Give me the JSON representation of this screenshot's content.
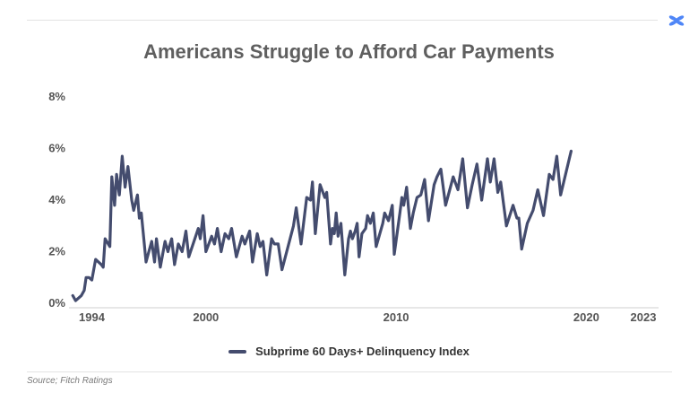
{
  "brand": {
    "logo_icon": "four-petal-x-icon",
    "accent": "#4f86f7"
  },
  "chart_data": {
    "type": "line",
    "title": "Americans Struggle to Afford Car Payments",
    "xlabel": "",
    "ylabel": "",
    "xlim": [
      1992.8,
      2023.8
    ],
    "ylim": [
      0,
      8
    ],
    "x_ticks": [
      1994,
      2000,
      2010,
      2020,
      2023
    ],
    "y_ticks": [
      {
        "value": 0,
        "label": "0%"
      },
      {
        "value": 2,
        "label": "2%"
      },
      {
        "value": 4,
        "label": "4%"
      },
      {
        "value": 6,
        "label": "6%"
      },
      {
        "value": 8,
        "label": "8%"
      }
    ],
    "grid": false,
    "legend_position": "bottom",
    "series": [
      {
        "name": "Subprime 60 Days+ Delinquency Index",
        "color": "#444c6e",
        "points": [
          [
            1993.0,
            0.3
          ],
          [
            1993.15,
            0.1
          ],
          [
            1993.45,
            0.3
          ],
          [
            1993.6,
            0.5
          ],
          [
            1993.7,
            1.0
          ],
          [
            1993.85,
            1.0
          ],
          [
            1994.0,
            0.9
          ],
          [
            1994.2,
            1.7
          ],
          [
            1994.5,
            1.5
          ],
          [
            1994.6,
            1.4
          ],
          [
            1994.7,
            2.5
          ],
          [
            1994.95,
            2.2
          ],
          [
            1995.05,
            4.9
          ],
          [
            1995.2,
            3.8
          ],
          [
            1995.3,
            5.0
          ],
          [
            1995.45,
            4.2
          ],
          [
            1995.6,
            5.7
          ],
          [
            1995.75,
            4.5
          ],
          [
            1995.9,
            5.3
          ],
          [
            1996.1,
            4.0
          ],
          [
            1996.2,
            3.6
          ],
          [
            1996.4,
            4.2
          ],
          [
            1996.5,
            3.3
          ],
          [
            1996.6,
            3.5
          ],
          [
            1996.85,
            1.6
          ],
          [
            1997.0,
            2.0
          ],
          [
            1997.15,
            2.4
          ],
          [
            1997.3,
            1.6
          ],
          [
            1997.4,
            2.5
          ],
          [
            1997.6,
            1.4
          ],
          [
            1997.85,
            2.4
          ],
          [
            1998.0,
            2.0
          ],
          [
            1998.2,
            2.5
          ],
          [
            1998.35,
            1.5
          ],
          [
            1998.55,
            2.3
          ],
          [
            1998.75,
            2.0
          ],
          [
            1998.95,
            2.8
          ],
          [
            1999.1,
            1.8
          ],
          [
            1999.6,
            2.9
          ],
          [
            1999.7,
            2.5
          ],
          [
            1999.85,
            3.4
          ],
          [
            2000.0,
            2.0
          ],
          [
            2000.3,
            2.6
          ],
          [
            2000.45,
            2.3
          ],
          [
            2000.6,
            2.9
          ],
          [
            2000.8,
            2.0
          ],
          [
            2001.0,
            2.7
          ],
          [
            2001.2,
            2.5
          ],
          [
            2001.35,
            2.9
          ],
          [
            2001.6,
            1.8
          ],
          [
            2001.9,
            2.6
          ],
          [
            2002.05,
            2.3
          ],
          [
            2002.3,
            2.8
          ],
          [
            2002.45,
            1.6
          ],
          [
            2002.7,
            2.7
          ],
          [
            2002.85,
            2.2
          ],
          [
            2003.0,
            2.4
          ],
          [
            2003.2,
            1.1
          ],
          [
            2003.45,
            2.5
          ],
          [
            2003.6,
            2.3
          ],
          [
            2003.8,
            2.3
          ],
          [
            2004.0,
            1.3
          ],
          [
            2004.6,
            3.0
          ],
          [
            2004.75,
            3.7
          ],
          [
            2005.0,
            2.3
          ],
          [
            2005.3,
            4.1
          ],
          [
            2005.5,
            4.0
          ],
          [
            2005.6,
            4.7
          ],
          [
            2005.75,
            2.7
          ],
          [
            2006.0,
            4.6
          ],
          [
            2006.25,
            4.1
          ],
          [
            2006.35,
            4.3
          ],
          [
            2006.55,
            2.3
          ],
          [
            2006.65,
            2.9
          ],
          [
            2006.75,
            2.7
          ],
          [
            2006.85,
            3.5
          ],
          [
            2006.95,
            2.6
          ],
          [
            2007.1,
            3.1
          ],
          [
            2007.3,
            1.1
          ],
          [
            2007.5,
            2.5
          ],
          [
            2007.6,
            2.8
          ],
          [
            2007.7,
            2.5
          ],
          [
            2007.85,
            2.8
          ],
          [
            2007.95,
            3.1
          ],
          [
            2008.05,
            1.8
          ],
          [
            2008.2,
            2.7
          ],
          [
            2008.4,
            2.9
          ],
          [
            2008.5,
            3.4
          ],
          [
            2008.65,
            3.1
          ],
          [
            2008.8,
            3.5
          ],
          [
            2008.95,
            2.2
          ],
          [
            2009.3,
            3.1
          ],
          [
            2009.4,
            3.5
          ],
          [
            2009.6,
            3.2
          ],
          [
            2009.8,
            3.8
          ],
          [
            2009.9,
            1.9
          ],
          [
            2010.2,
            3.5
          ],
          [
            2010.3,
            4.1
          ],
          [
            2010.4,
            3.8
          ],
          [
            2010.55,
            4.5
          ],
          [
            2010.75,
            2.9
          ],
          [
            2010.9,
            3.5
          ],
          [
            2011.1,
            4.1
          ],
          [
            2011.3,
            4.2
          ],
          [
            2011.5,
            4.8
          ],
          [
            2011.7,
            3.2
          ],
          [
            2012.0,
            4.6
          ],
          [
            2012.15,
            4.9
          ],
          [
            2012.35,
            5.2
          ],
          [
            2012.6,
            3.8
          ],
          [
            2013.0,
            4.9
          ],
          [
            2013.25,
            4.4
          ],
          [
            2013.5,
            5.6
          ],
          [
            2013.75,
            3.7
          ],
          [
            2014.0,
            4.6
          ],
          [
            2014.25,
            5.4
          ],
          [
            2014.5,
            4.0
          ],
          [
            2014.8,
            5.6
          ],
          [
            2014.95,
            4.7
          ],
          [
            2015.15,
            5.6
          ],
          [
            2015.35,
            4.3
          ],
          [
            2015.5,
            4.7
          ],
          [
            2015.8,
            3.0
          ],
          [
            2016.15,
            3.8
          ],
          [
            2016.35,
            3.3
          ],
          [
            2016.45,
            3.3
          ],
          [
            2016.6,
            2.1
          ],
          [
            2016.9,
            3.1
          ],
          [
            2017.2,
            3.6
          ],
          [
            2017.45,
            4.4
          ],
          [
            2017.75,
            3.4
          ],
          [
            2018.05,
            5.0
          ],
          [
            2018.25,
            4.8
          ],
          [
            2018.45,
            5.7
          ],
          [
            2018.65,
            4.2
          ],
          [
            2019.2,
            5.9
          ]
        ]
      }
    ]
  },
  "source": "Source; Fitch Ratings"
}
